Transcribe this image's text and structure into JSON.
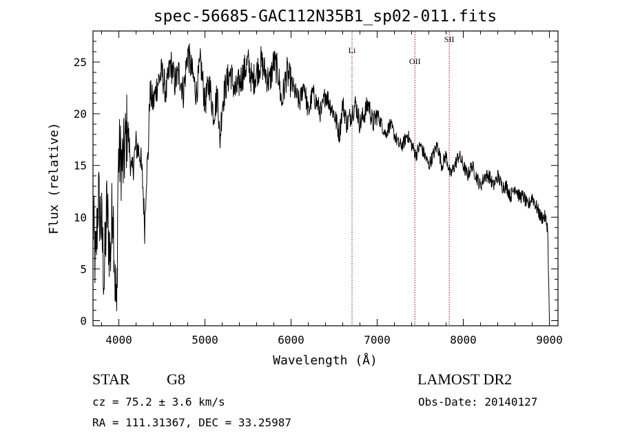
{
  "chart_data": {
    "type": "line",
    "title": "spec-56685-GAC112N35B1_sp02-011.fits",
    "xlabel": "Wavelength (Å)",
    "ylabel": "Flux (relative)",
    "xlim": [
      3700,
      9100
    ],
    "ylim": [
      -0.5,
      28
    ],
    "xticks": [
      4000,
      5000,
      6000,
      7000,
      8000,
      9000
    ],
    "yticks": [
      0,
      5,
      10,
      15,
      20,
      25
    ],
    "grid": false,
    "line_color": "#000000",
    "marker_color": "#8b0000",
    "series": [
      {
        "x": [
          3700,
          3730,
          3760,
          3800,
          3830,
          3860,
          3900,
          3930,
          3960,
          3975,
          3990,
          4000,
          4050,
          4100,
          4150,
          4200,
          4250,
          4280,
          4300,
          4320,
          4340,
          4360,
          4400,
          4450,
          4500,
          4550,
          4600,
          4650,
          4700,
          4750,
          4800,
          4850,
          4900,
          4950,
          5000,
          5050,
          5100,
          5150,
          5172,
          5200,
          5250,
          5300,
          5350,
          5400,
          5450,
          5500,
          5550,
          5600,
          5650,
          5700,
          5750,
          5800,
          5850,
          5890,
          5950,
          6000,
          6050,
          6100,
          6150,
          6200,
          6250,
          6300,
          6350,
          6400,
          6450,
          6500,
          6563,
          6600,
          6650,
          6700,
          6750,
          6800,
          6850,
          6900,
          6950,
          7000,
          7050,
          7100,
          7150,
          7200,
          7250,
          7300,
          7350,
          7400,
          7450,
          7500,
          7550,
          7600,
          7650,
          7700,
          7750,
          7800,
          7850,
          7900,
          7950,
          8000,
          8050,
          8100,
          8150,
          8200,
          8250,
          8300,
          8350,
          8400,
          8450,
          8500,
          8550,
          8600,
          8650,
          8700,
          8750,
          8800,
          8850,
          8900,
          8950,
          8980,
          9000
        ],
        "y": [
          10,
          5,
          12,
          9,
          4,
          11,
          6,
          12,
          3,
          0,
          14,
          16,
          15,
          19,
          14,
          17,
          16,
          13,
          9,
          14,
          16,
          22,
          21,
          23,
          24,
          22,
          25,
          23,
          24,
          22,
          26,
          24,
          22,
          25,
          21,
          23,
          20,
          22,
          17,
          21,
          23,
          24,
          22,
          23,
          24,
          25,
          23,
          24,
          25,
          24,
          23,
          25,
          24,
          21,
          24,
          23,
          22,
          21,
          23,
          20,
          22,
          21,
          20,
          22,
          21,
          20,
          18,
          21,
          19,
          20,
          21,
          19,
          20,
          21,
          19,
          20,
          19,
          18,
          19,
          18,
          17,
          17,
          18,
          17,
          16,
          17,
          16,
          15,
          16,
          17,
          15,
          16,
          14,
          15,
          16,
          15,
          14,
          15,
          14,
          13,
          14,
          14,
          13,
          14,
          13,
          13,
          12,
          13,
          12,
          12,
          11,
          12,
          11,
          10,
          10,
          9,
          0
        ]
      }
    ],
    "lines": [
      {
        "label": "Li",
        "x": 6708
      },
      {
        "label": "OII",
        "x": 7438
      },
      {
        "label": "SII",
        "x": 7837
      }
    ]
  },
  "info": {
    "object_class": "STAR",
    "subclass": "G8",
    "survey": "LAMOST DR2",
    "cz": "cz = 75.2 ± 3.6 km/s",
    "obs_date": "Obs-Date: 20140127",
    "coords": "RA = 111.31367, DEC =  33.25987"
  }
}
